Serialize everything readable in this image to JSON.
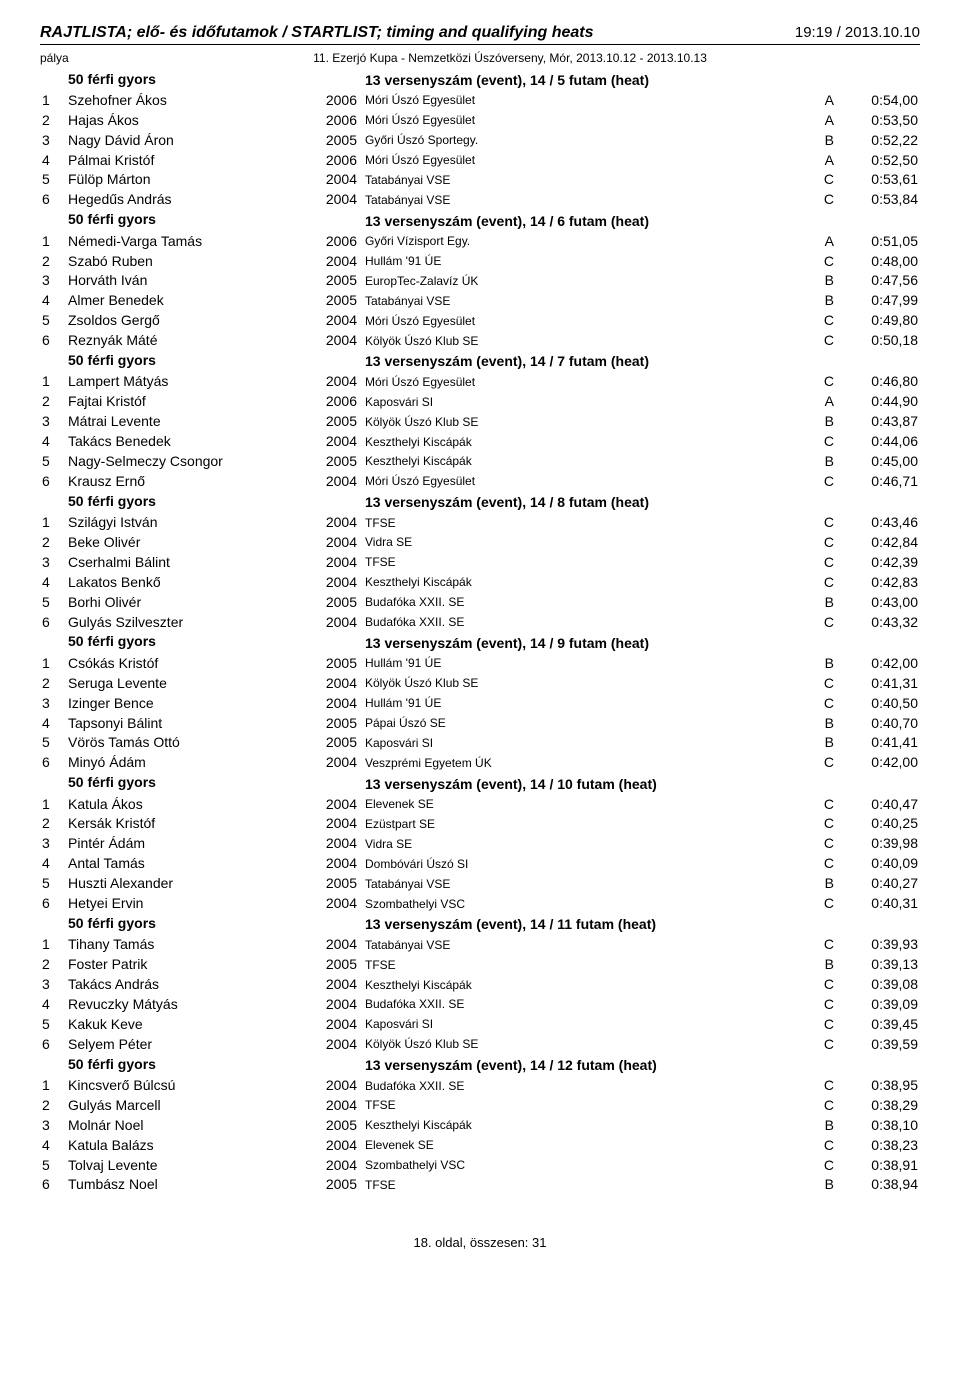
{
  "header": {
    "title": "RAJTLISTA; elő- és időfutamok / STARTLIST; timing and qualifying heats",
    "datetime": "19:19 / 2013.10.10"
  },
  "sub": {
    "left": "pálya",
    "right": "11. Ezerjó Kupa - Nemzetközi Úszóverseny, Mór, 2013.10.12 - 2013.10.13"
  },
  "heat_event_label": "50 férfi gyors",
  "heat_info_prefix": "13 versenyszám (event),  14 / ",
  "heat_info_suffix": " futam (heat)",
  "heats": [
    {
      "n": 5,
      "rows": [
        {
          "lane": 1,
          "name": "Szehofner Ákos",
          "year": 2006,
          "club": "Móri Úszó Egyesület",
          "cls": "A",
          "time": "0:54,00"
        },
        {
          "lane": 2,
          "name": "Hajas Ákos",
          "year": 2006,
          "club": "Móri Úszó Egyesület",
          "cls": "A",
          "time": "0:53,50"
        },
        {
          "lane": 3,
          "name": "Nagy Dávid Áron",
          "year": 2005,
          "club": "Győri Úszó Sportegy.",
          "cls": "B",
          "time": "0:52,22"
        },
        {
          "lane": 4,
          "name": "Pálmai Kristóf",
          "year": 2006,
          "club": "Móri Úszó Egyesület",
          "cls": "A",
          "time": "0:52,50"
        },
        {
          "lane": 5,
          "name": "Fülöp Márton",
          "year": 2004,
          "club": "Tatabányai VSE",
          "cls": "C",
          "time": "0:53,61"
        },
        {
          "lane": 6,
          "name": "Hegedűs András",
          "year": 2004,
          "club": "Tatabányai VSE",
          "cls": "C",
          "time": "0:53,84"
        }
      ]
    },
    {
      "n": 6,
      "rows": [
        {
          "lane": 1,
          "name": "Némedi-Varga Tamás",
          "year": 2006,
          "club": "Győri Vízisport Egy.",
          "cls": "A",
          "time": "0:51,05"
        },
        {
          "lane": 2,
          "name": "Szabó Ruben",
          "year": 2004,
          "club": "Hullám '91 ÚE",
          "cls": "C",
          "time": "0:48,00"
        },
        {
          "lane": 3,
          "name": "Horváth Iván",
          "year": 2005,
          "club": "EuropTec-Zalavíz ÚK",
          "cls": "B",
          "time": "0:47,56"
        },
        {
          "lane": 4,
          "name": "Almer Benedek",
          "year": 2005,
          "club": "Tatabányai VSE",
          "cls": "B",
          "time": "0:47,99"
        },
        {
          "lane": 5,
          "name": "Zsoldos Gergő",
          "year": 2004,
          "club": "Móri Úszó Egyesület",
          "cls": "C",
          "time": "0:49,80"
        },
        {
          "lane": 6,
          "name": "Reznyák Máté",
          "year": 2004,
          "club": "Kölyök Úszó Klub SE",
          "cls": "C",
          "time": "0:50,18"
        }
      ]
    },
    {
      "n": 7,
      "rows": [
        {
          "lane": 1,
          "name": "Lampert Mátyás",
          "year": 2004,
          "club": "Móri Úszó Egyesület",
          "cls": "C",
          "time": "0:46,80"
        },
        {
          "lane": 2,
          "name": "Fajtai Kristóf",
          "year": 2006,
          "club": "Kaposvári SI",
          "cls": "A",
          "time": "0:44,90"
        },
        {
          "lane": 3,
          "name": "Mátrai Levente",
          "year": 2005,
          "club": "Kölyök Úszó Klub SE",
          "cls": "B",
          "time": "0:43,87"
        },
        {
          "lane": 4,
          "name": "Takács Benedek",
          "year": 2004,
          "club": "Keszthelyi Kiscápák",
          "cls": "C",
          "time": "0:44,06"
        },
        {
          "lane": 5,
          "name": "Nagy-Selmeczy Csongor",
          "year": 2005,
          "club": "Keszthelyi Kiscápák",
          "cls": "B",
          "time": "0:45,00"
        },
        {
          "lane": 6,
          "name": "Krausz Ernő",
          "year": 2004,
          "club": "Móri Úszó Egyesület",
          "cls": "C",
          "time": "0:46,71"
        }
      ]
    },
    {
      "n": 8,
      "rows": [
        {
          "lane": 1,
          "name": "Szilágyi István",
          "year": 2004,
          "club": "TFSE",
          "cls": "C",
          "time": "0:43,46"
        },
        {
          "lane": 2,
          "name": "Beke Olivér",
          "year": 2004,
          "club": "Vidra SE",
          "cls": "C",
          "time": "0:42,84"
        },
        {
          "lane": 3,
          "name": "Cserhalmi Bálint",
          "year": 2004,
          "club": "TFSE",
          "cls": "C",
          "time": "0:42,39"
        },
        {
          "lane": 4,
          "name": "Lakatos Benkő",
          "year": 2004,
          "club": "Keszthelyi Kiscápák",
          "cls": "C",
          "time": "0:42,83"
        },
        {
          "lane": 5,
          "name": "Borhi Olivér",
          "year": 2005,
          "club": "Budafóka XXII. SE",
          "cls": "B",
          "time": "0:43,00"
        },
        {
          "lane": 6,
          "name": "Gulyás Szilveszter",
          "year": 2004,
          "club": "Budafóka XXII. SE",
          "cls": "C",
          "time": "0:43,32"
        }
      ]
    },
    {
      "n": 9,
      "rows": [
        {
          "lane": 1,
          "name": "Csókás Kristóf",
          "year": 2005,
          "club": "Hullám '91 ÚE",
          "cls": "B",
          "time": "0:42,00"
        },
        {
          "lane": 2,
          "name": "Seruga Levente",
          "year": 2004,
          "club": "Kölyök Úszó Klub SE",
          "cls": "C",
          "time": "0:41,31"
        },
        {
          "lane": 3,
          "name": "Izinger Bence",
          "year": 2004,
          "club": "Hullám '91 ÚE",
          "cls": "C",
          "time": "0:40,50"
        },
        {
          "lane": 4,
          "name": "Tapsonyi Bálint",
          "year": 2005,
          "club": "Pápai Úszó SE",
          "cls": "B",
          "time": "0:40,70"
        },
        {
          "lane": 5,
          "name": "Vörös Tamás Ottó",
          "year": 2005,
          "club": "Kaposvári SI",
          "cls": "B",
          "time": "0:41,41"
        },
        {
          "lane": 6,
          "name": "Minyó Ádám",
          "year": 2004,
          "club": "Veszprémi Egyetem ÚK",
          "cls": "C",
          "time": "0:42,00"
        }
      ]
    },
    {
      "n": 10,
      "rows": [
        {
          "lane": 1,
          "name": "Katula Ákos",
          "year": 2004,
          "club": "Elevenek SE",
          "cls": "C",
          "time": "0:40,47"
        },
        {
          "lane": 2,
          "name": "Kersák Kristóf",
          "year": 2004,
          "club": "Ezüstpart SE",
          "cls": "C",
          "time": "0:40,25"
        },
        {
          "lane": 3,
          "name": "Pintér Ádám",
          "year": 2004,
          "club": "Vidra SE",
          "cls": "C",
          "time": "0:39,98"
        },
        {
          "lane": 4,
          "name": "Antal Tamás",
          "year": 2004,
          "club": "Dombóvári Úszó SI",
          "cls": "C",
          "time": "0:40,09"
        },
        {
          "lane": 5,
          "name": "Huszti Alexander",
          "year": 2005,
          "club": "Tatabányai VSE",
          "cls": "B",
          "time": "0:40,27"
        },
        {
          "lane": 6,
          "name": "Hetyei Ervin",
          "year": 2004,
          "club": "Szombathelyi VSC",
          "cls": "C",
          "time": "0:40,31"
        }
      ]
    },
    {
      "n": 11,
      "rows": [
        {
          "lane": 1,
          "name": "Tihany Tamás",
          "year": 2004,
          "club": "Tatabányai VSE",
          "cls": "C",
          "time": "0:39,93"
        },
        {
          "lane": 2,
          "name": "Foster Patrik",
          "year": 2005,
          "club": "TFSE",
          "cls": "B",
          "time": "0:39,13"
        },
        {
          "lane": 3,
          "name": "Takács András",
          "year": 2004,
          "club": "Keszthelyi Kiscápák",
          "cls": "C",
          "time": "0:39,08"
        },
        {
          "lane": 4,
          "name": "Revuczky Mátyás",
          "year": 2004,
          "club": "Budafóka XXII. SE",
          "cls": "C",
          "time": "0:39,09"
        },
        {
          "lane": 5,
          "name": "Kakuk Keve",
          "year": 2004,
          "club": "Kaposvári SI",
          "cls": "C",
          "time": "0:39,45"
        },
        {
          "lane": 6,
          "name": "Selyem Péter",
          "year": 2004,
          "club": "Kölyök Úszó Klub SE",
          "cls": "C",
          "time": "0:39,59"
        }
      ]
    },
    {
      "n": 12,
      "rows": [
        {
          "lane": 1,
          "name": "Kincsverő Búlcsú",
          "year": 2004,
          "club": "Budafóka XXII. SE",
          "cls": "C",
          "time": "0:38,95"
        },
        {
          "lane": 2,
          "name": "Gulyás Marcell",
          "year": 2004,
          "club": "TFSE",
          "cls": "C",
          "time": "0:38,29"
        },
        {
          "lane": 3,
          "name": "Molnár Noel",
          "year": 2005,
          "club": "Keszthelyi Kiscápák",
          "cls": "B",
          "time": "0:38,10"
        },
        {
          "lane": 4,
          "name": "Katula Balázs",
          "year": 2004,
          "club": "Elevenek SE",
          "cls": "C",
          "time": "0:38,23"
        },
        {
          "lane": 5,
          "name": "Tolvaj Levente",
          "year": 2004,
          "club": "Szombathelyi VSC",
          "cls": "C",
          "time": "0:38,91"
        },
        {
          "lane": 6,
          "name": "Tumbász Noel",
          "year": 2005,
          "club": "TFSE",
          "cls": "B",
          "time": "0:38,94"
        }
      ]
    }
  ],
  "footer": "18. oldal, összesen: 31"
}
